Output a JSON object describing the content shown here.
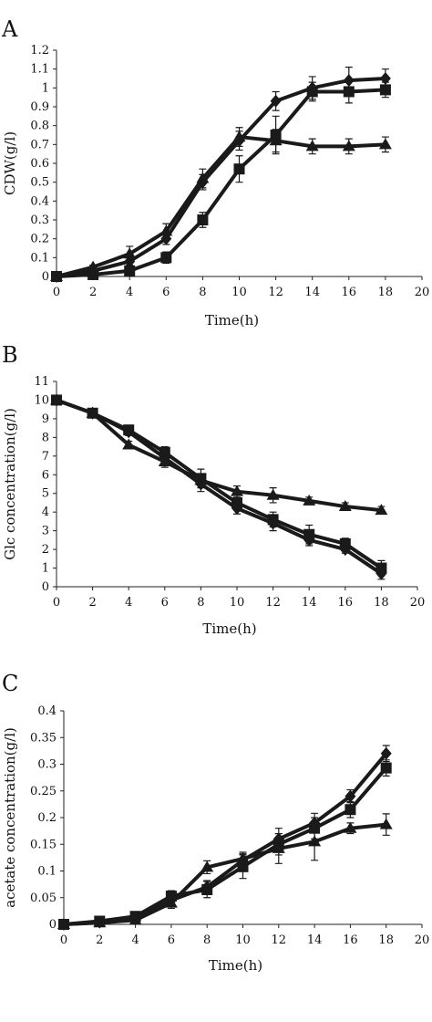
{
  "chart_data": [
    {
      "type": "line",
      "panel_letter": "A",
      "xlabel": "Time(h)",
      "ylabel": "CDW(g/l)",
      "x": [
        0,
        2,
        4,
        6,
        8,
        10,
        12,
        14,
        16,
        18
      ],
      "xlim": [
        0,
        20
      ],
      "xticks": [
        "0",
        "2",
        "4",
        "6",
        "8",
        "10",
        "12",
        "14",
        "16",
        "18",
        "20"
      ],
      "ylim": [
        0,
        1.2
      ],
      "yticks": [
        "0",
        "0.1",
        "0.2",
        "0.3",
        "0.4",
        "0.5",
        "0.6",
        "0.7",
        "0.8",
        "0.9",
        "1",
        "1.1",
        "1.2"
      ],
      "series": [
        {
          "marker": "diamond",
          "values": [
            0,
            0.03,
            0.08,
            0.2,
            0.5,
            0.72,
            0.93,
            1.0,
            1.04,
            1.05
          ],
          "errors": [
            0,
            0.01,
            0.02,
            0.03,
            0.04,
            0.05,
            0.05,
            0.06,
            0.07,
            0.05
          ]
        },
        {
          "marker": "square",
          "values": [
            0,
            0.01,
            0.03,
            0.1,
            0.3,
            0.57,
            0.75,
            0.98,
            0.98,
            0.99
          ],
          "errors": [
            0,
            0.01,
            0.02,
            0.03,
            0.04,
            0.07,
            0.1,
            0.05,
            0.06,
            0.04
          ]
        },
        {
          "marker": "triangle",
          "values": [
            0,
            0.05,
            0.12,
            0.24,
            0.52,
            0.74,
            0.72,
            0.69,
            0.69,
            0.7
          ],
          "errors": [
            0,
            0.01,
            0.04,
            0.04,
            0.05,
            0.05,
            0.06,
            0.04,
            0.04,
            0.04
          ]
        }
      ]
    },
    {
      "type": "line",
      "panel_letter": "B",
      "xlabel": "Time(h)",
      "ylabel": "Glc concentration(g/l)",
      "x": [
        0,
        2,
        4,
        6,
        8,
        10,
        12,
        14,
        16,
        18
      ],
      "xlim": [
        0,
        20
      ],
      "xticks": [
        "0",
        "2",
        "4",
        "6",
        "8",
        "10",
        "12",
        "14",
        "16",
        "18",
        "20"
      ],
      "ylim": [
        0,
        11
      ],
      "yticks": [
        "0",
        "1",
        "2",
        "3",
        "4",
        "5",
        "6",
        "7",
        "8",
        "9",
        "10",
        "11"
      ],
      "series": [
        {
          "marker": "diamond",
          "values": [
            10,
            9.3,
            8.3,
            6.9,
            5.5,
            4.2,
            3.4,
            2.5,
            2.0,
            0.7
          ],
          "errors": [
            0,
            0.1,
            0.2,
            0.3,
            0.4,
            0.3,
            0.4,
            0.3,
            0.2,
            0.3
          ]
        },
        {
          "marker": "square",
          "values": [
            10,
            9.3,
            8.4,
            7.2,
            5.8,
            4.5,
            3.6,
            2.8,
            2.3,
            1.0
          ],
          "errors": [
            0,
            0.1,
            0.2,
            0.3,
            0.5,
            0.4,
            0.4,
            0.5,
            0.3,
            0.4
          ]
        },
        {
          "marker": "triangle",
          "values": [
            10,
            9.3,
            7.6,
            6.7,
            5.7,
            5.1,
            4.9,
            4.6,
            4.3,
            4.1
          ],
          "errors": [
            0,
            0.1,
            0.2,
            0.3,
            0.3,
            0.3,
            0.4,
            0.2,
            0.2,
            0.2
          ]
        }
      ]
    },
    {
      "type": "line",
      "panel_letter": "C",
      "xlabel": "Time(h)",
      "ylabel": "acetate concentration(g/l)",
      "x": [
        0,
        2,
        4,
        6,
        8,
        10,
        12,
        14,
        16,
        18
      ],
      "xlim": [
        0,
        20
      ],
      "xticks": [
        "0",
        "2",
        "4",
        "6",
        "8",
        "10",
        "12",
        "14",
        "16",
        "18",
        "20"
      ],
      "ylim": [
        0,
        0.4
      ],
      "yticks": [
        "0",
        "0.05",
        "0.1",
        "0.15",
        "0.2",
        "0.25",
        "0.3",
        "0.35",
        "0.4"
      ],
      "series": [
        {
          "marker": "diamond",
          "values": [
            0,
            0.004,
            0.01,
            0.045,
            0.07,
            0.12,
            0.16,
            0.19,
            0.24,
            0.32
          ],
          "errors": [
            0,
            0.002,
            0.004,
            0.008,
            0.012,
            0.012,
            0.02,
            0.018,
            0.012,
            0.015
          ]
        },
        {
          "marker": "square",
          "values": [
            0,
            0.006,
            0.015,
            0.053,
            0.065,
            0.108,
            0.15,
            0.18,
            0.215,
            0.293
          ],
          "errors": [
            0,
            0.003,
            0.005,
            0.01,
            0.015,
            0.022,
            0.02,
            0.02,
            0.015,
            0.015
          ]
        },
        {
          "marker": "triangle",
          "values": [
            0,
            0.003,
            0.008,
            0.04,
            0.107,
            0.123,
            0.142,
            0.155,
            0.18,
            0.187
          ],
          "errors": [
            0,
            0.002,
            0.004,
            0.01,
            0.012,
            0.012,
            0.028,
            0.035,
            0.01,
            0.02
          ]
        }
      ]
    }
  ]
}
